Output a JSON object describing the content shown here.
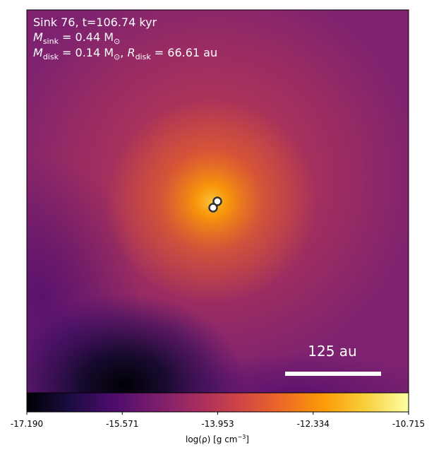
{
  "panel": {
    "title_line": "Sink 76, t=106.74 kyr",
    "m_sink_label": "M",
    "m_sink_sub": "sink",
    "m_sink_value": " = 0.44 M",
    "m_sink_unit_sub": "⊙",
    "m_disk_label": "M",
    "m_disk_sub": "disk",
    "m_disk_value": " = 0.14 M",
    "m_disk_unit_sub": "⊙",
    "r_disk_sep": ", ",
    "r_disk_label": "R",
    "r_disk_sub": "disk",
    "r_disk_value": " = 66.61 au",
    "scalebar_label": "125 au"
  },
  "colorbar": {
    "tick_labels": [
      "-17.190",
      "-15.571",
      "-13.953",
      "-12.334",
      "-10.715"
    ],
    "label_prefix": "log(ρ) [g cm",
    "label_exp": "−3",
    "label_suffix": "]"
  },
  "colors": {
    "colormap": [
      "#000004",
      "#1b0c41",
      "#4a0c6b",
      "#781c6d",
      "#a52c60",
      "#cf4446",
      "#ed6925",
      "#fb9b06",
      "#f7d13d",
      "#fcffa4"
    ],
    "sink_marker_fill": "#ffffff",
    "sink_marker_edge": "#333333"
  }
}
